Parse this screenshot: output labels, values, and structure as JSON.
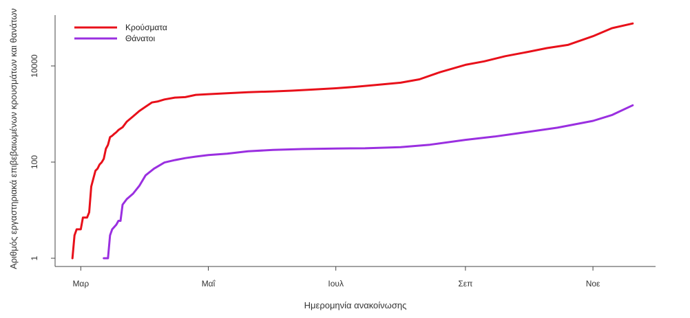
{
  "chart_data": {
    "type": "line",
    "title": "",
    "xlabel": "Ημερομηνία ανακοίνωσης",
    "ylabel": "Αριθμός εργαστηριακά επιβεβαιωμένων κρουσμάτων και θανάτων",
    "yscale": "log",
    "ylim": [
      1,
      80000
    ],
    "xlim": [
      "2020-02-21",
      "2020-11-27"
    ],
    "x_ticks": [
      {
        "date": "2020-03-01",
        "label": "Μαρ"
      },
      {
        "date": "2020-05-01",
        "label": "Μαΐ"
      },
      {
        "date": "2020-07-01",
        "label": "Ιουλ"
      },
      {
        "date": "2020-09-01",
        "label": "Σεπ"
      },
      {
        "date": "2020-11-01",
        "label": "Νοε"
      }
    ],
    "y_ticks": [
      {
        "value": 1,
        "label": "1"
      },
      {
        "value": 100,
        "label": "100"
      },
      {
        "value": 10000,
        "label": "10000"
      }
    ],
    "legend_position": "top-left",
    "series": [
      {
        "name": "Κρούσματα",
        "color": "#e8101a",
        "points": [
          [
            "2020-02-26",
            1
          ],
          [
            "2020-02-27",
            3
          ],
          [
            "2020-02-28",
            4
          ],
          [
            "2020-03-01",
            4
          ],
          [
            "2020-03-02",
            7
          ],
          [
            "2020-03-04",
            7
          ],
          [
            "2020-03-05",
            9
          ],
          [
            "2020-03-06",
            31
          ],
          [
            "2020-03-07",
            45
          ],
          [
            "2020-03-08",
            66
          ],
          [
            "2020-03-09",
            73
          ],
          [
            "2020-03-10",
            89
          ],
          [
            "2020-03-11",
            99
          ],
          [
            "2020-03-12",
            117
          ],
          [
            "2020-03-13",
            190
          ],
          [
            "2020-03-14",
            228
          ],
          [
            "2020-03-15",
            331
          ],
          [
            "2020-03-16",
            352
          ],
          [
            "2020-03-17",
            387
          ],
          [
            "2020-03-18",
            418
          ],
          [
            "2020-03-19",
            464
          ],
          [
            "2020-03-21",
            530
          ],
          [
            "2020-03-23",
            695
          ],
          [
            "2020-03-26",
            892
          ],
          [
            "2020-03-29",
            1156
          ],
          [
            "2020-04-01",
            1415
          ],
          [
            "2020-04-04",
            1735
          ],
          [
            "2020-04-07",
            1832
          ],
          [
            "2020-04-10",
            2011
          ],
          [
            "2020-04-15",
            2192
          ],
          [
            "2020-04-20",
            2245
          ],
          [
            "2020-04-25",
            2506
          ],
          [
            "2020-05-01",
            2591
          ],
          [
            "2020-05-10",
            2710
          ],
          [
            "2020-05-20",
            2850
          ],
          [
            "2020-06-01",
            2952
          ],
          [
            "2020-06-10",
            3058
          ],
          [
            "2020-06-20",
            3227
          ],
          [
            "2020-07-01",
            3432
          ],
          [
            "2020-07-10",
            3672
          ],
          [
            "2020-07-20",
            4007
          ],
          [
            "2020-08-01",
            4477
          ],
          [
            "2020-08-10",
            5270
          ],
          [
            "2020-08-20",
            7472
          ],
          [
            "2020-09-01",
            10524
          ],
          [
            "2020-09-10",
            12452
          ],
          [
            "2020-09-20",
            15928
          ],
          [
            "2020-10-01",
            19613
          ],
          [
            "2020-10-10",
            23514
          ],
          [
            "2020-10-20",
            27334
          ],
          [
            "2020-11-01",
            41527
          ],
          [
            "2020-11-10",
            60804
          ],
          [
            "2020-11-20",
            76451
          ]
        ]
      },
      {
        "name": "Θάνατοι",
        "color": "#9a2fe0",
        "points": [
          [
            "2020-03-12",
            1
          ],
          [
            "2020-03-14",
            1
          ],
          [
            "2020-03-15",
            3
          ],
          [
            "2020-03-16",
            4
          ],
          [
            "2020-03-18",
            5
          ],
          [
            "2020-03-19",
            6
          ],
          [
            "2020-03-20",
            6
          ],
          [
            "2020-03-21",
            13
          ],
          [
            "2020-03-23",
            17
          ],
          [
            "2020-03-26",
            22
          ],
          [
            "2020-03-29",
            32
          ],
          [
            "2020-04-01",
            53
          ],
          [
            "2020-04-05",
            73
          ],
          [
            "2020-04-10",
            98
          ],
          [
            "2020-04-15",
            110
          ],
          [
            "2020-04-20",
            121
          ],
          [
            "2020-04-25",
            130
          ],
          [
            "2020-05-01",
            140
          ],
          [
            "2020-05-10",
            150
          ],
          [
            "2020-05-20",
            168
          ],
          [
            "2020-06-01",
            179
          ],
          [
            "2020-06-15",
            187
          ],
          [
            "2020-07-01",
            192
          ],
          [
            "2020-07-15",
            194
          ],
          [
            "2020-08-01",
            205
          ],
          [
            "2020-08-15",
            230
          ],
          [
            "2020-09-01",
            290
          ],
          [
            "2020-09-15",
            340
          ],
          [
            "2020-10-01",
            425
          ],
          [
            "2020-10-15",
            520
          ],
          [
            "2020-11-01",
            720
          ],
          [
            "2020-11-10",
            950
          ],
          [
            "2020-11-20",
            1520
          ]
        ]
      }
    ]
  }
}
